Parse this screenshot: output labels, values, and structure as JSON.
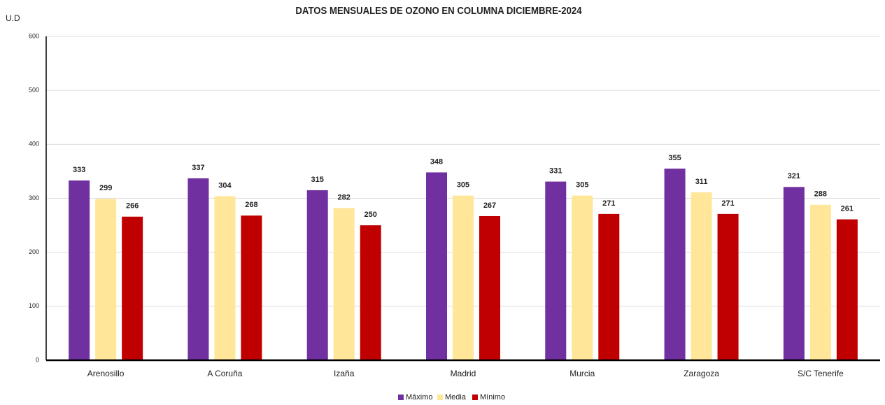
{
  "chart_data": {
    "type": "bar",
    "title": "DATOS MENSUALES DE OZONO EN COLUMNA DICIEMBRE-2024",
    "ylabel": "U.D",
    "categories": [
      "Arenosillo",
      "A Coruña",
      "Izaña",
      "Madrid",
      "Murcia",
      "Zaragoza",
      "S/C Tenerife"
    ],
    "series": [
      {
        "name": "Máximo",
        "color": "#7030a0",
        "values": [
          333,
          337,
          315,
          348,
          331,
          355,
          321
        ]
      },
      {
        "name": "Media",
        "color": "#ffe699",
        "values": [
          299,
          304,
          282,
          305,
          305,
          311,
          288
        ]
      },
      {
        "name": "Mínimo",
        "color": "#c00000",
        "values": [
          266,
          268,
          250,
          267,
          271,
          271,
          261
        ]
      }
    ],
    "ylim": [
      0,
      600
    ],
    "yticks": [
      0,
      100,
      200,
      300,
      400,
      500,
      600
    ],
    "grid": true,
    "legend": "bottom"
  }
}
